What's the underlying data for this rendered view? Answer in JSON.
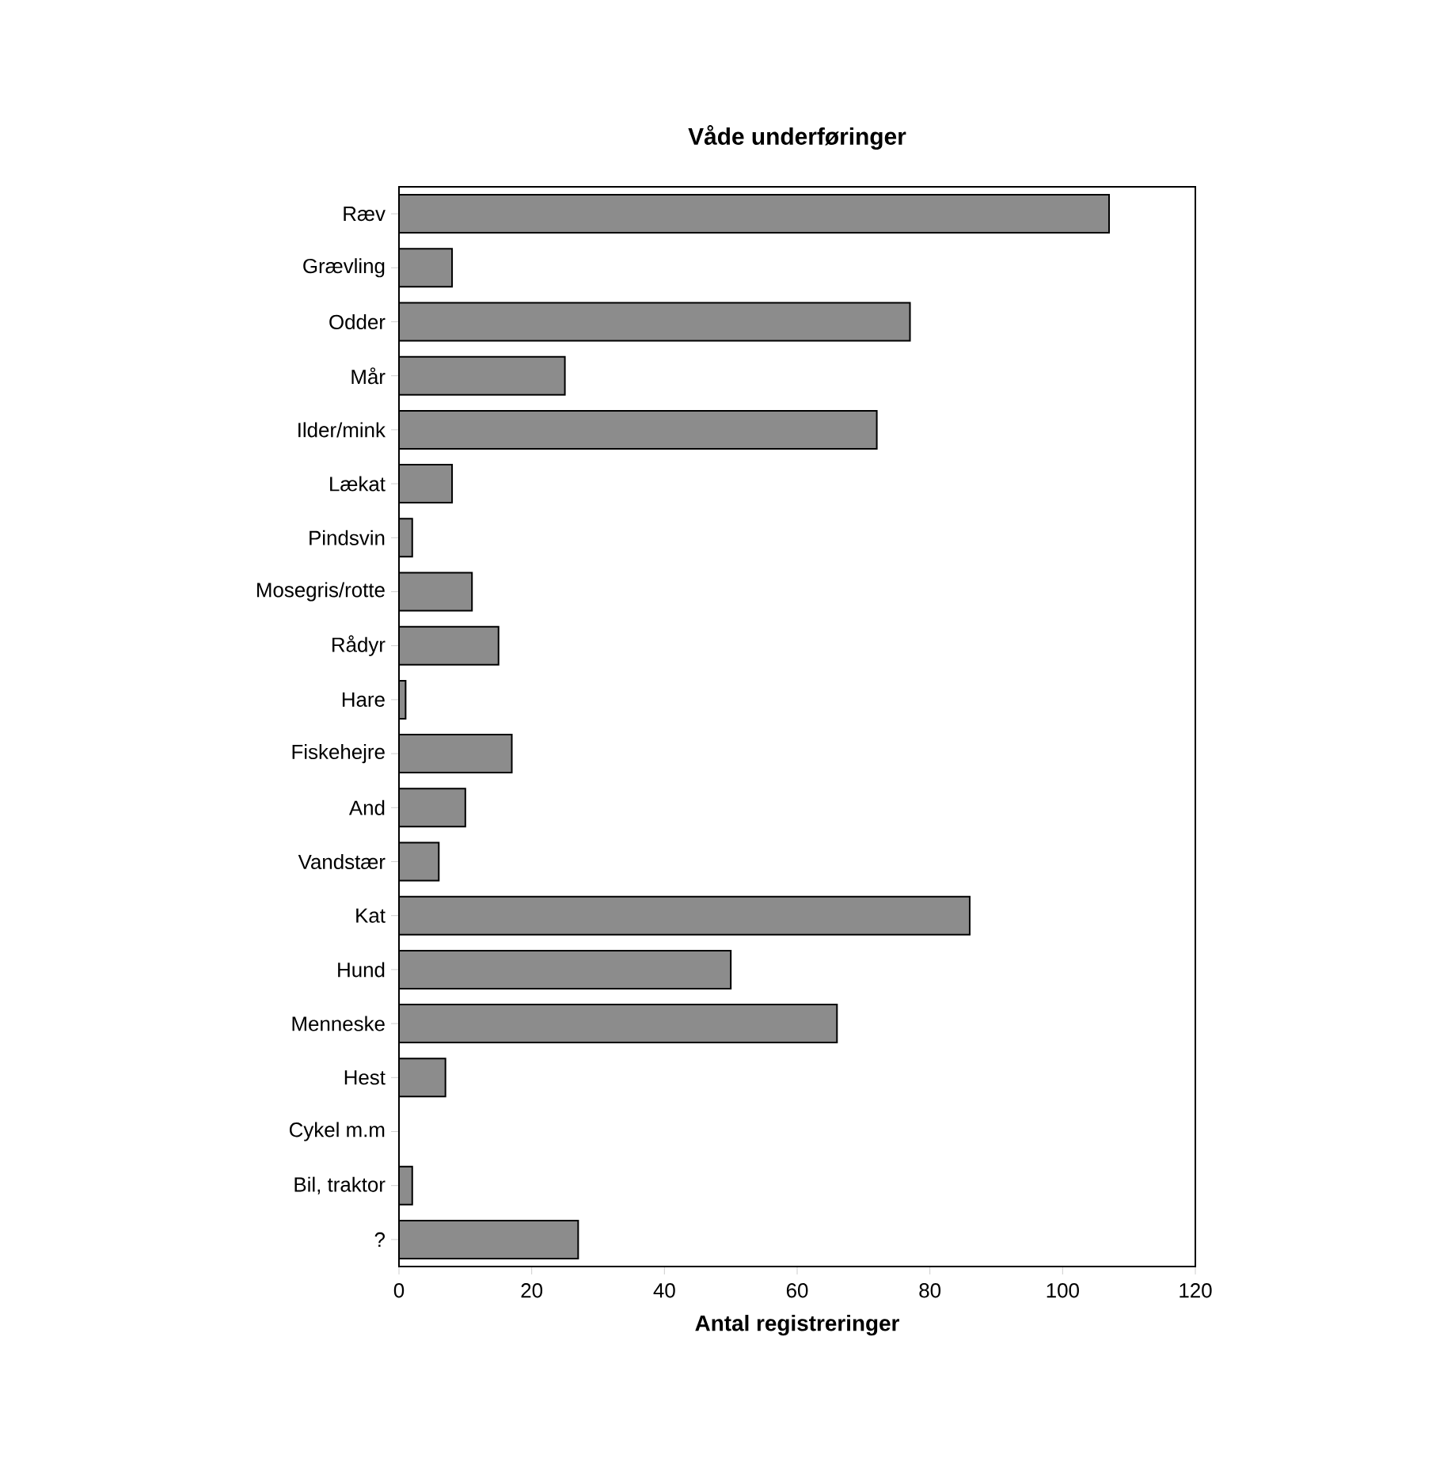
{
  "chart_data": {
    "type": "bar",
    "orientation": "horizontal",
    "title": "Våde underføringer",
    "xlabel": "Antal registreringer",
    "categories": [
      "Ræv",
      "Grævling",
      "Odder",
      "Mår",
      "Ilder/mink",
      "Lækat",
      "Pindsvin",
      "Mosegris/rotte",
      "Rådyr",
      "Hare",
      "Fiskehejre",
      "And",
      "Vandstær",
      "Kat",
      "Hund",
      "Menneske",
      "Hest",
      "Cykel m.m",
      "Bil, traktor",
      "?"
    ],
    "values": [
      107,
      8,
      77,
      25,
      72,
      8,
      2,
      11,
      15,
      1,
      17,
      10,
      6,
      86,
      50,
      66,
      7,
      0,
      2,
      27
    ],
    "color": "#8c8c8c",
    "xlim": [
      0,
      120
    ],
    "xticks": [
      0,
      20,
      40,
      60,
      80,
      100,
      120
    ],
    "grid": false
  }
}
